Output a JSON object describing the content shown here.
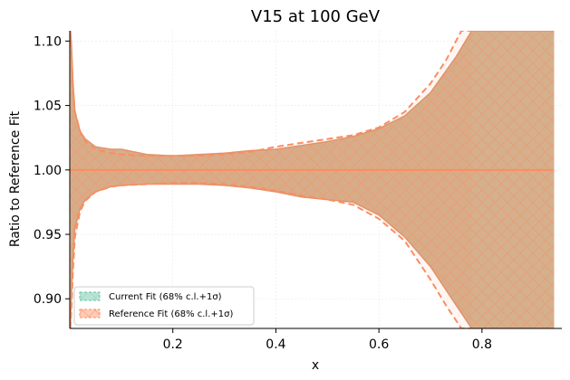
{
  "chart_data": {
    "type": "area",
    "title": "V15 at 100 GeV",
    "xlabel": "x",
    "ylabel": "Ratio to Reference Fit",
    "xlim": [
      0.0,
      0.955
    ],
    "ylim": [
      0.877,
      1.108
    ],
    "xticks": [
      0.2,
      0.4,
      0.6,
      0.8
    ],
    "xtick_labels": [
      "0.2",
      "0.4",
      "0.6",
      "0.8"
    ],
    "yticks": [
      0.9,
      0.95,
      1.0,
      1.05,
      1.1
    ],
    "ytick_labels": [
      "0.90",
      "0.95",
      "1.00",
      "1.05",
      "1.10"
    ],
    "grid": true,
    "legend_position": "lower-left",
    "colors": {
      "current": "#66c2a5",
      "reference": "#fc8d62",
      "band_fill": "#d4b08c"
    },
    "series": [
      {
        "name": "Current Fit (68% c.l.+1σ)",
        "x": [
          0.001,
          0.003,
          0.006,
          0.01,
          0.02,
          0.03,
          0.05,
          0.08,
          0.1,
          0.15,
          0.2,
          0.25,
          0.3,
          0.35,
          0.4,
          0.45,
          0.5,
          0.55,
          0.6,
          0.65,
          0.7,
          0.75,
          0.78,
          0.8,
          0.85,
          0.9,
          0.94
        ],
        "upper": [
          1.108,
          1.1,
          1.07,
          1.045,
          1.03,
          1.024,
          1.018,
          1.016,
          1.016,
          1.012,
          1.011,
          1.012,
          1.013,
          1.015,
          1.016,
          1.019,
          1.022,
          1.026,
          1.032,
          1.042,
          1.06,
          1.088,
          1.108,
          1.108,
          1.108,
          1.108,
          1.108
        ],
        "lower": [
          0.877,
          0.9,
          0.93,
          0.955,
          0.97,
          0.977,
          0.983,
          0.987,
          0.988,
          0.989,
          0.989,
          0.989,
          0.988,
          0.986,
          0.983,
          0.979,
          0.977,
          0.975,
          0.965,
          0.948,
          0.925,
          0.895,
          0.877,
          0.877,
          0.877,
          0.877,
          0.877
        ]
      },
      {
        "name": "Reference Fit (68% c.l.+1σ)",
        "x": [
          0.001,
          0.003,
          0.006,
          0.01,
          0.02,
          0.03,
          0.05,
          0.08,
          0.1,
          0.15,
          0.2,
          0.25,
          0.3,
          0.35,
          0.4,
          0.45,
          0.5,
          0.55,
          0.6,
          0.65,
          0.7,
          0.73,
          0.76,
          0.78
        ],
        "upper": [
          1.108,
          1.095,
          1.065,
          1.045,
          1.03,
          1.022,
          1.016,
          1.013,
          1.012,
          1.011,
          1.011,
          1.011,
          1.012,
          1.014,
          1.018,
          1.021,
          1.024,
          1.027,
          1.033,
          1.045,
          1.067,
          1.085,
          1.108,
          1.108
        ],
        "lower": [
          0.877,
          0.89,
          0.92,
          0.948,
          0.968,
          0.976,
          0.983,
          0.987,
          0.988,
          0.989,
          0.99,
          0.99,
          0.989,
          0.987,
          0.984,
          0.98,
          0.977,
          0.973,
          0.962,
          0.945,
          0.915,
          0.895,
          0.877,
          0.877
        ]
      }
    ],
    "central_line": {
      "value": 1.0
    }
  }
}
